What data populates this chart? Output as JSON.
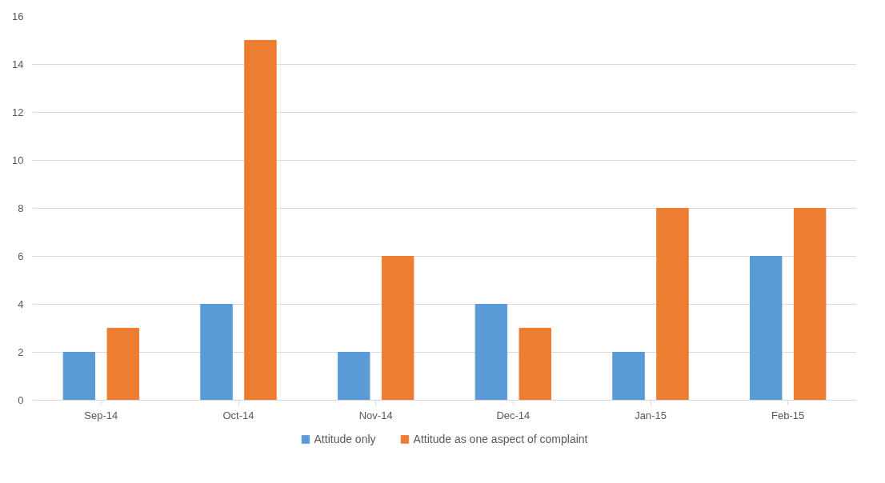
{
  "chart_data": {
    "type": "bar",
    "categories": [
      "Sep-14",
      "Oct-14",
      "Nov-14",
      "Dec-14",
      "Jan-15",
      "Feb-15"
    ],
    "series": [
      {
        "name": "Attitude only",
        "color": "#5b9bd5",
        "values": [
          2,
          4,
          2,
          4,
          2,
          6
        ]
      },
      {
        "name": "Attitude as one aspect of complaint",
        "color": "#ed7d31",
        "values": [
          3,
          15,
          6,
          3,
          8,
          8
        ]
      }
    ],
    "ylim": [
      0,
      16
    ],
    "yticks": [
      0,
      2,
      4,
      6,
      8,
      10,
      12,
      14,
      16
    ],
    "grid": "y",
    "legend": "bottom"
  }
}
